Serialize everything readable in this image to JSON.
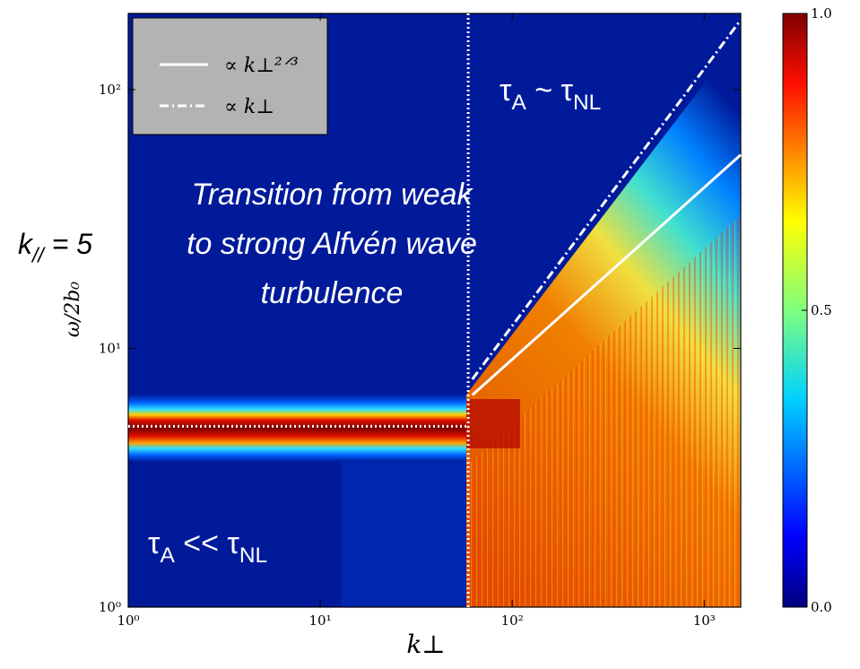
{
  "chart_data": {
    "type": "line",
    "x_label": "k⊥",
    "y_label": "ω/2b₀",
    "xlog": true,
    "ylog": true,
    "xlim": [
      1,
      1550
    ],
    "ylim": [
      1,
      197
    ],
    "xticks": [
      {
        "value": 1,
        "label": "10⁰"
      },
      {
        "value": 10,
        "label": "10¹"
      },
      {
        "value": 100,
        "label": "10²"
      },
      {
        "value": 1000,
        "label": "10³"
      }
    ],
    "yticks": [
      {
        "value": 1,
        "label": "10⁰"
      },
      {
        "value": 10,
        "label": "10¹"
      },
      {
        "value": 100,
        "label": "10²"
      }
    ],
    "legend": "upper left",
    "series": [
      {
        "name": "∝ k⊥²ᐟ³",
        "color": "#ffffff",
        "dash": "solid",
        "x": [
          62,
          1550
        ],
        "values": [
          6.6,
          56
        ]
      },
      {
        "name": "∝ k⊥",
        "color": "#ffffff",
        "dash": "dashdot",
        "x": [
          62,
          1550
        ],
        "values": [
          7.6,
          186
        ]
      },
      {
        "color": "#ffffff",
        "dash": "dotted",
        "x": [
          59,
          59
        ],
        "values": [
          1,
          197
        ]
      },
      {
        "color": "#ffffff",
        "dash": "dotted",
        "x": [
          1,
          59
        ],
        "values": [
          5,
          5
        ]
      }
    ],
    "colorbar": {
      "lim": [
        0,
        1
      ],
      "ticks": [
        {
          "value": 0,
          "label": "0.0"
        },
        {
          "value": 0.5,
          "label": "0.5"
        },
        {
          "value": 1,
          "label": "1.0"
        }
      ]
    },
    "annotations": [
      {
        "parts": [
          "τ",
          "A",
          " ~ τ",
          "NL"
        ]
      },
      {
        "parts": [
          "Transition from weak"
        ]
      },
      {
        "parts": [
          "to strong Alfvén wave"
        ]
      },
      {
        "parts": [
          "turbulence"
        ]
      },
      {
        "parts": [
          "k",
          "//",
          " = 5"
        ]
      },
      {
        "parts": [
          "τ",
          "A",
          " << τ",
          "NL"
        ]
      }
    ]
  }
}
